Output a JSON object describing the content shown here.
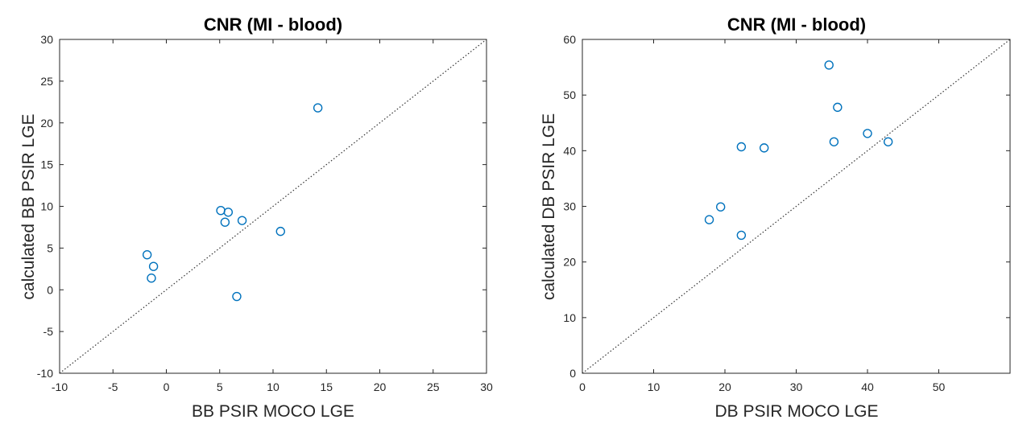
{
  "chart_data": [
    {
      "type": "scatter",
      "title": "CNR (MI - blood)",
      "xlabel": "BB PSIR MOCO LGE",
      "ylabel": "calculated BB PSIR LGE",
      "xlim": [
        -10,
        30
      ],
      "ylim": [
        -10,
        30
      ],
      "xticks": [
        -10,
        -5,
        0,
        5,
        10,
        15,
        20,
        25,
        30
      ],
      "yticks": [
        -10,
        -5,
        0,
        5,
        10,
        15,
        20,
        25,
        30
      ],
      "grid": false,
      "reference_line": "y = x (dotted)",
      "marker": "open circle",
      "color": "#0072BD",
      "points": [
        {
          "x": -1.8,
          "y": 4.2
        },
        {
          "x": -1.2,
          "y": 2.8
        },
        {
          "x": -1.4,
          "y": 1.4
        },
        {
          "x": 5.1,
          "y": 9.5
        },
        {
          "x": 5.8,
          "y": 9.3
        },
        {
          "x": 5.5,
          "y": 8.1
        },
        {
          "x": 7.1,
          "y": 8.3
        },
        {
          "x": 6.6,
          "y": -0.8
        },
        {
          "x": 10.7,
          "y": 7.0
        },
        {
          "x": 14.2,
          "y": 21.8
        }
      ]
    },
    {
      "type": "scatter",
      "title": "CNR (MI - blood)",
      "xlabel": "DB PSIR MOCO LGE",
      "ylabel": "calculated DB PSIR LGE",
      "xlim": [
        0,
        60
      ],
      "ylim": [
        0,
        60
      ],
      "xticks": [
        0,
        10,
        20,
        30,
        40,
        50
      ],
      "yticks": [
        0,
        10,
        20,
        30,
        40,
        50,
        60
      ],
      "grid": false,
      "reference_line": "y = x (dotted)",
      "marker": "open circle",
      "color": "#0072BD",
      "points": [
        {
          "x": 17.8,
          "y": 27.6
        },
        {
          "x": 19.4,
          "y": 29.9
        },
        {
          "x": 22.3,
          "y": 24.8
        },
        {
          "x": 22.3,
          "y": 40.7
        },
        {
          "x": 25.5,
          "y": 40.5
        },
        {
          "x": 34.6,
          "y": 55.4
        },
        {
          "x": 35.3,
          "y": 41.6
        },
        {
          "x": 35.8,
          "y": 47.8
        },
        {
          "x": 40.0,
          "y": 43.1
        },
        {
          "x": 42.9,
          "y": 41.6
        }
      ]
    }
  ]
}
